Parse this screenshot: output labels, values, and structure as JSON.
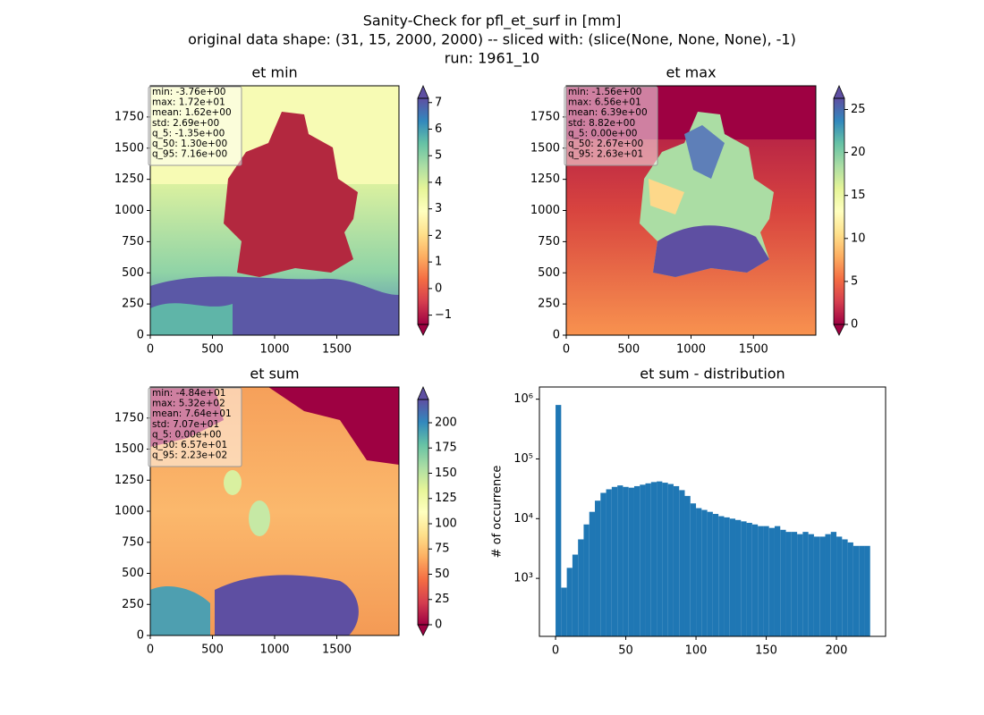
{
  "title": [
    "Sanity-Check for pfl_et_surf in [mm]",
    "original data shape: (31, 15, 2000, 2000) -- sliced with: (slice(None, None, None), -1)",
    "run: 1961_10"
  ],
  "chart_data": [
    {
      "type": "heatmap",
      "title": "et min",
      "xlim": [
        0,
        2000
      ],
      "xticks": [
        0,
        500,
        1000,
        1500
      ],
      "ylim": [
        0,
        2000
      ],
      "yticks": [
        0,
        250,
        500,
        750,
        1000,
        1250,
        1500,
        1750
      ],
      "clim": [
        -1.35,
        7.16
      ],
      "cticks": [
        {
          "value": -1,
          "label": "−1"
        },
        0,
        1,
        2,
        3,
        4,
        5,
        6,
        7
      ],
      "annotation": [
        "min: -3.76e+00",
        "max: 1.72e+01",
        "mean: 1.62e+00",
        "std: 2.69e+00",
        "q_5: -1.35e+00",
        "q_50: 1.30e+00",
        "q_95: 7.16e+00"
      ]
    },
    {
      "type": "heatmap",
      "title": "et max",
      "xlim": [
        0,
        2000
      ],
      "xticks": [
        0,
        500,
        1000,
        1500
      ],
      "ylim": [
        0,
        2000
      ],
      "yticks": [
        0,
        250,
        500,
        750,
        1000,
        1250,
        1500,
        1750
      ],
      "clim": [
        0,
        26.3
      ],
      "cticks": [
        0,
        5,
        10,
        15,
        20,
        25
      ],
      "annotation": [
        "min: -1.56e+00",
        "max: 6.56e+01",
        "mean: 6.39e+00",
        "std: 8.82e+00",
        "q_5: 0.00e+00",
        "q_50: 2.67e+00",
        "q_95: 2.63e+01"
      ]
    },
    {
      "type": "heatmap",
      "title": "et sum",
      "xlim": [
        0,
        2000
      ],
      "xticks": [
        0,
        500,
        1000,
        1500
      ],
      "ylim": [
        0,
        2000
      ],
      "yticks": [
        0,
        250,
        500,
        750,
        1000,
        1250,
        1500,
        1750
      ],
      "clim": [
        0,
        223
      ],
      "cticks": [
        0,
        25,
        50,
        75,
        100,
        125,
        150,
        175,
        200
      ],
      "annotation": [
        "min: -4.84e+01",
        "max: 5.32e+02",
        "mean: 7.64e+01",
        "std: 7.07e+01",
        "q_5: 0.00e+00",
        "q_50: 6.57e+01",
        "q_95: 2.23e+02"
      ]
    },
    {
      "type": "histogram",
      "title": "et sum - distribution",
      "ylabel": "# of occurrence",
      "color": "#1f77b4",
      "log_y": true,
      "bins": [
        0,
        4,
        8,
        12,
        16,
        20,
        24,
        28,
        32,
        36,
        40,
        44,
        48,
        52,
        56,
        60,
        64,
        68,
        72,
        76,
        80,
        84,
        88,
        92,
        96,
        100,
        104,
        108,
        112,
        116,
        120,
        124,
        128,
        132,
        136,
        140,
        144,
        148,
        152,
        156,
        160,
        164,
        168,
        172,
        176,
        180,
        184,
        188,
        192,
        196,
        200,
        204,
        208,
        212,
        216,
        220,
        224
      ],
      "counts": [
        800000,
        700,
        1500,
        2500,
        4500,
        8000,
        13000,
        20000,
        27000,
        31000,
        34000,
        36000,
        34000,
        33000,
        35000,
        37000,
        39000,
        41000,
        42000,
        40000,
        38000,
        35000,
        30000,
        24000,
        18000,
        15000,
        14000,
        13000,
        12000,
        11000,
        10500,
        10000,
        9500,
        9000,
        8500,
        8000,
        7500,
        7500,
        7000,
        7500,
        6500,
        6000,
        6000,
        5500,
        6000,
        5500,
        5000,
        5000,
        5500,
        6000,
        5000,
        4500,
        4000,
        3500,
        3500,
        3500
      ],
      "xlim": [
        -11.5,
        235
      ],
      "xticks": [
        0,
        50,
        100,
        150,
        200
      ],
      "ylim": [
        107,
        1600000
      ],
      "yticks": [
        {
          "value": 1000,
          "label": "10³"
        },
        {
          "value": 10000,
          "label": "10⁴"
        },
        {
          "value": 100000,
          "label": "10⁵"
        },
        {
          "value": 1000000,
          "label": "10⁶"
        }
      ]
    }
  ]
}
